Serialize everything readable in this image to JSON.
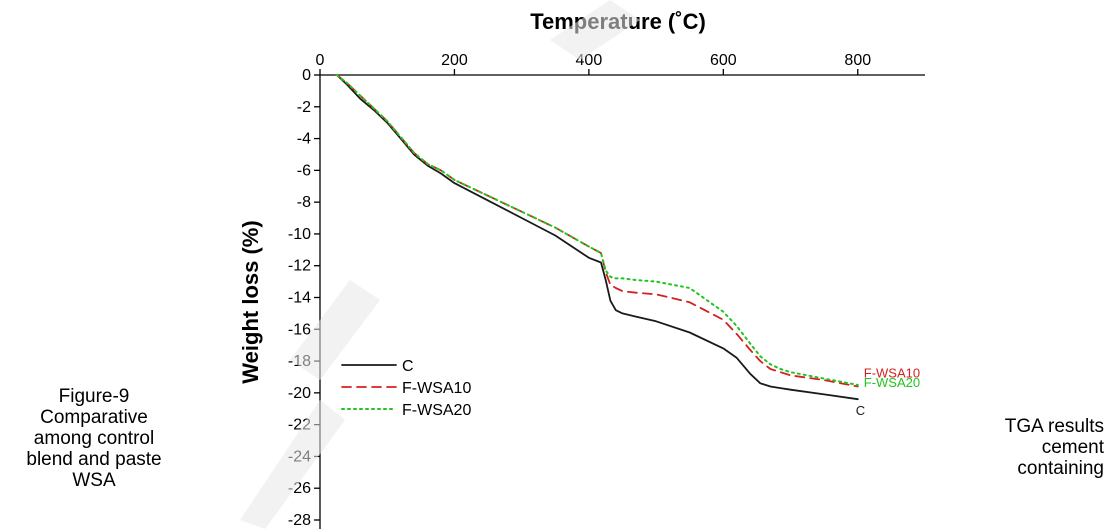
{
  "chart_data": {
    "type": "line",
    "title": "",
    "xlabel": "Temperature (˚C)",
    "ylabel": "Weight loss (%)",
    "xlim": [
      0,
      900
    ],
    "ylim": [
      -28,
      0
    ],
    "x_ticks": [
      0,
      200,
      400,
      600,
      800
    ],
    "y_ticks": [
      0,
      -2,
      -4,
      -6,
      -8,
      -10,
      -12,
      -14,
      -16,
      -18,
      -20,
      -22,
      -24,
      -26,
      -28
    ],
    "x_axis_position": "top",
    "grid": false,
    "legend_position": "lower-left",
    "series": [
      {
        "name": "C",
        "color": "#1a1a1a",
        "dash": "solid",
        "end_label": "C",
        "x": [
          25,
          40,
          60,
          80,
          100,
          120,
          140,
          160,
          180,
          200,
          250,
          300,
          350,
          400,
          418,
          425,
          432,
          440,
          450,
          470,
          500,
          550,
          600,
          620,
          640,
          655,
          670,
          685,
          700,
          750,
          800
        ],
        "y": [
          0,
          -0.6,
          -1.5,
          -2.2,
          -3.0,
          -4.0,
          -5.0,
          -5.7,
          -6.2,
          -6.8,
          -7.9,
          -9.0,
          -10.1,
          -11.5,
          -11.8,
          -12.9,
          -14.2,
          -14.8,
          -15.0,
          -15.2,
          -15.5,
          -16.2,
          -17.2,
          -17.8,
          -18.8,
          -19.4,
          -19.6,
          -19.7,
          -19.8,
          -20.1,
          -20.4
        ]
      },
      {
        "name": "F-WSA10",
        "color": "#d62020",
        "dash": "dashed",
        "end_label": "F-WSA10",
        "x": [
          25,
          40,
          60,
          80,
          100,
          120,
          140,
          160,
          180,
          200,
          250,
          300,
          350,
          400,
          418,
          425,
          432,
          440,
          450,
          470,
          500,
          550,
          600,
          620,
          640,
          655,
          670,
          685,
          700,
          750,
          800
        ],
        "y": [
          0,
          -0.5,
          -1.3,
          -2.1,
          -2.9,
          -3.9,
          -4.9,
          -5.6,
          -6.0,
          -6.6,
          -7.6,
          -8.6,
          -9.6,
          -10.8,
          -11.2,
          -12.4,
          -13.2,
          -13.4,
          -13.6,
          -13.7,
          -13.8,
          -14.3,
          -15.4,
          -16.3,
          -17.3,
          -18.0,
          -18.5,
          -18.7,
          -18.9,
          -19.2,
          -19.6
        ]
      },
      {
        "name": "F-WSA20",
        "color": "#22c422",
        "dash": "dotted",
        "end_label": "F-WSA20",
        "x": [
          25,
          40,
          60,
          80,
          100,
          120,
          140,
          160,
          180,
          200,
          250,
          300,
          350,
          400,
          418,
          425,
          432,
          440,
          450,
          470,
          500,
          550,
          600,
          620,
          640,
          655,
          670,
          685,
          700,
          750,
          800
        ],
        "y": [
          0,
          -0.5,
          -1.3,
          -2.1,
          -2.9,
          -3.9,
          -4.9,
          -5.6,
          -6.0,
          -6.6,
          -7.6,
          -8.6,
          -9.6,
          -10.8,
          -11.2,
          -12.3,
          -12.7,
          -12.8,
          -12.8,
          -12.9,
          -13.0,
          -13.4,
          -14.9,
          -15.8,
          -16.9,
          -17.7,
          -18.2,
          -18.5,
          -18.7,
          -19.1,
          -19.5
        ]
      }
    ]
  },
  "caption": {
    "left_lines": [
      "Figure-9",
      "Comparative",
      "among control",
      "blend and paste",
      "WSA"
    ],
    "right_lines": [
      "TGA results",
      "cement",
      "containing"
    ]
  }
}
